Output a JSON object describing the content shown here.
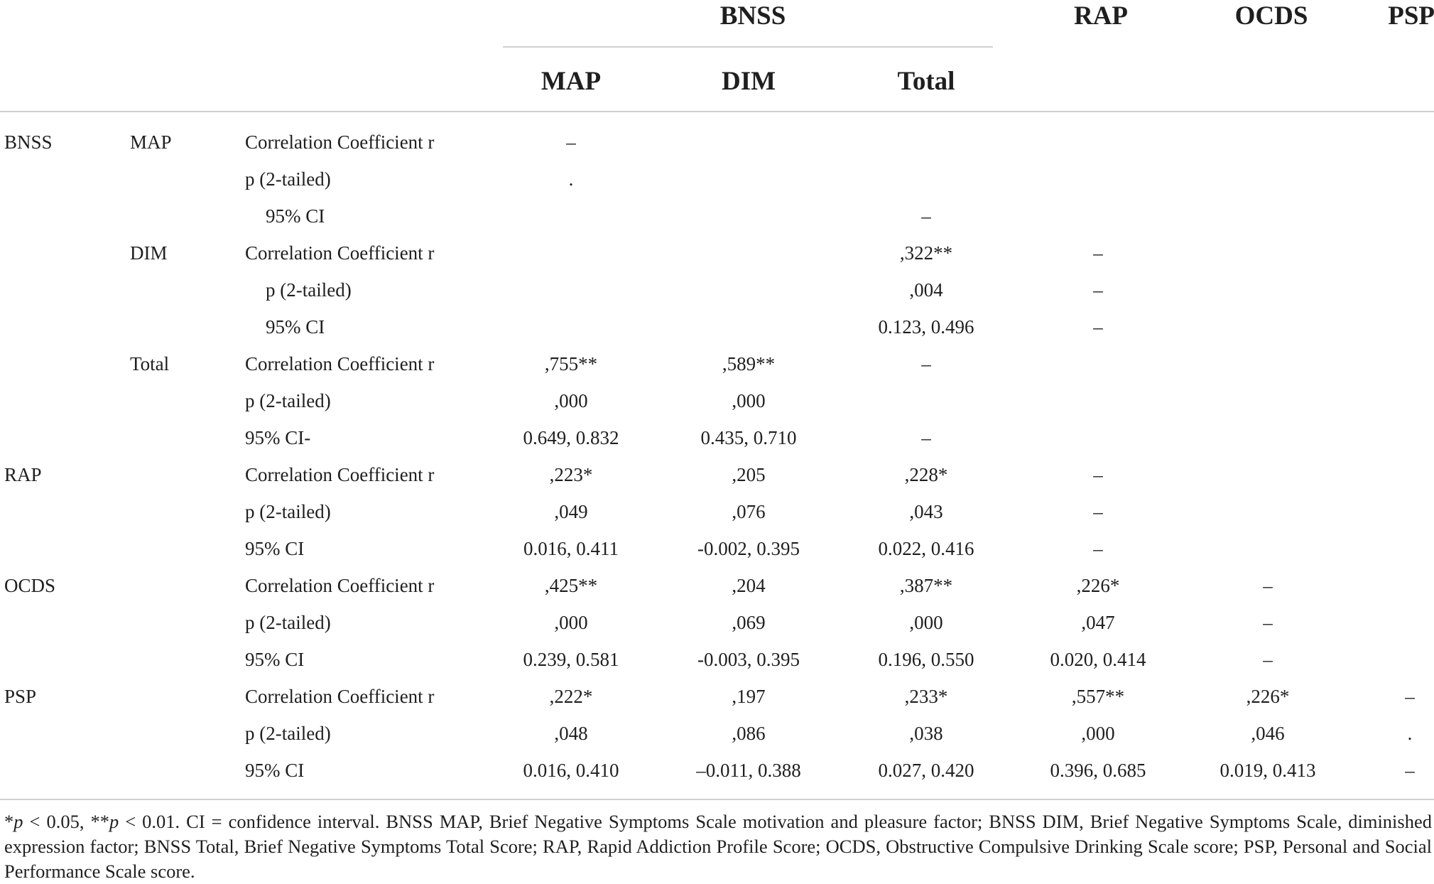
{
  "headers": {
    "group_bnss": "BNSS",
    "rap": "RAP",
    "ocds": "OCDS",
    "psp": "PSP",
    "map": "MAP",
    "dim": "DIM",
    "total": "Total"
  },
  "rows": [
    {
      "group": "BNSS",
      "sub": "MAP",
      "stat": "Correlation Coefficient r",
      "indent": false,
      "map": "–",
      "dim": "",
      "total": "",
      "rap": "",
      "ocds": "",
      "psp": ""
    },
    {
      "group": "",
      "sub": "",
      "stat": "p (2-tailed)",
      "indent": false,
      "map": ".",
      "dim": "",
      "total": "",
      "rap": "",
      "ocds": "",
      "psp": ""
    },
    {
      "group": "",
      "sub": "",
      "stat": "95% CI",
      "indent": true,
      "map": "",
      "dim": "",
      "total": "–",
      "rap": "",
      "ocds": "",
      "psp": ""
    },
    {
      "group": "",
      "sub": "DIM",
      "stat": "Correlation Coefficient r",
      "indent": false,
      "map": "",
      "dim": "",
      "total": ",322**",
      "rap": "–",
      "ocds": "",
      "psp": ""
    },
    {
      "group": "",
      "sub": "",
      "stat": "p (2-tailed)",
      "indent": true,
      "map": "",
      "dim": "",
      "total": ",004",
      "rap": "–",
      "ocds": "",
      "psp": ""
    },
    {
      "group": "",
      "sub": "",
      "stat": "95% CI",
      "indent": true,
      "map": "",
      "dim": "",
      "total": "0.123, 0.496",
      "rap": "–",
      "ocds": "",
      "psp": ""
    },
    {
      "group": "",
      "sub": "Total",
      "stat": "Correlation Coefficient r",
      "indent": false,
      "map": ",755**",
      "dim": ",589**",
      "total": "–",
      "rap": "",
      "ocds": "",
      "psp": ""
    },
    {
      "group": "",
      "sub": "",
      "stat": "p (2-tailed)",
      "indent": false,
      "map": ",000",
      "dim": ",000",
      "total": "",
      "rap": "",
      "ocds": "",
      "psp": ""
    },
    {
      "group": "",
      "sub": "",
      "stat": "95% CI-",
      "indent": false,
      "map": "0.649, 0.832",
      "dim": "0.435, 0.710",
      "total": "–",
      "rap": "",
      "ocds": "",
      "psp": ""
    },
    {
      "group": "RAP",
      "sub": "",
      "stat": "Correlation Coefficient r",
      "indent": false,
      "map": ",223*",
      "dim": ",205",
      "total": ",228*",
      "rap": "–",
      "ocds": "",
      "psp": ""
    },
    {
      "group": "",
      "sub": "",
      "stat": "p (2-tailed)",
      "indent": false,
      "map": ",049",
      "dim": ",076",
      "total": ",043",
      "rap": "–",
      "ocds": "",
      "psp": ""
    },
    {
      "group": "",
      "sub": "",
      "stat": "95% CI",
      "indent": false,
      "map": "0.016, 0.411",
      "dim": "-0.002, 0.395",
      "total": "0.022, 0.416",
      "rap": "–",
      "ocds": "",
      "psp": ""
    },
    {
      "group": "OCDS",
      "sub": "",
      "stat": "Correlation Coefficient r",
      "indent": false,
      "map": ",425**",
      "dim": ",204",
      "total": ",387**",
      "rap": ",226*",
      "ocds": "–",
      "psp": ""
    },
    {
      "group": "",
      "sub": "",
      "stat": "p (2-tailed)",
      "indent": false,
      "map": ",000",
      "dim": ",069",
      "total": ",000",
      "rap": ",047",
      "ocds": "–",
      "psp": ""
    },
    {
      "group": "",
      "sub": "",
      "stat": "95% CI",
      "indent": false,
      "map": "0.239, 0.581",
      "dim": "-0.003, 0.395",
      "total": "0.196, 0.550",
      "rap": "0.020, 0.414",
      "ocds": "–",
      "psp": ""
    },
    {
      "group": "PSP",
      "sub": "",
      "stat": "Correlation Coefficient r",
      "indent": false,
      "map": ",222*",
      "dim": ",197",
      "total": ",233*",
      "rap": ",557**",
      "ocds": ",226*",
      "psp": "–"
    },
    {
      "group": "",
      "sub": "",
      "stat": "p (2-tailed)",
      "indent": false,
      "map": ",048",
      "dim": ",086",
      "total": ",038",
      "rap": ",000",
      "ocds": ",046",
      "psp": "."
    },
    {
      "group": "",
      "sub": "",
      "stat": "95% CI",
      "indent": false,
      "map": "0.016, 0.410",
      "dim": "–0.011, 0.388",
      "total": "0.027, 0.420",
      "rap": "0.396, 0.685",
      "ocds": "0.019, 0.413",
      "psp": "–"
    }
  ],
  "footnote": {
    "sig1_mark": "*",
    "sig1_var": "p",
    "sig1_rest": " < 0.05, ",
    "sig2_mark": "**",
    "sig2_var": "p",
    "sig2_rest": " < 0.01. CI = confidence interval. BNSS MAP, Brief Negative Symptoms Scale motivation and pleasure factor; BNSS DIM, Brief Negative Symptoms Scale, diminished expression factor; BNSS Total, Brief Negative Symptoms Total Score; RAP, Rapid Addiction Profile Score; OCDS, Obstructive Compulsive Drinking Scale score; PSP, Personal and Social Performance Scale score."
  }
}
